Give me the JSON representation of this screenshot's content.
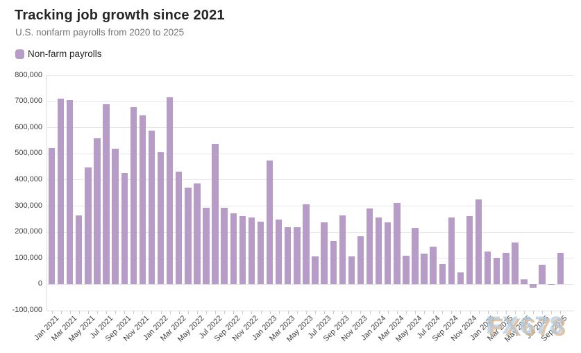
{
  "header": {
    "title": "Tracking job growth since 2021",
    "subtitle": "U.S. nonfarm payrolls from 2020 to 2025"
  },
  "legend": {
    "label": "Non-farm payrolls"
  },
  "watermark": {
    "text": "FX678"
  },
  "colors": {
    "bar": "#b69cc6",
    "grid": "#e7e7e7",
    "axis": "#dcdcdc",
    "tick": "#c9c9c9",
    "title": "#262626",
    "subtitle": "#757575",
    "axis_label": "#3f3f3f"
  },
  "chart_data": {
    "type": "bar",
    "title": "Tracking job growth since 2021",
    "subtitle": "U.S. nonfarm payrolls from 2020 to 2025",
    "series_name": "Non-farm payrolls",
    "bar_color": "#b69cc6",
    "grid": true,
    "legend_position": "top-left",
    "ylim": [
      -100000,
      800000
    ],
    "y_tick_step": 100000,
    "y_tick_labels": [
      "800,000",
      "700,000",
      "600,000",
      "500,000",
      "400,000",
      "300,000",
      "200,000",
      "100,000",
      "0",
      "-100,000"
    ],
    "x_label_interval": 2,
    "categories": [
      "Jan 2021",
      "Feb 2021",
      "Mar 2021",
      "Apr 2021",
      "May 2021",
      "Jun 2021",
      "Jul 2021",
      "Aug 2021",
      "Sep 2021",
      "Oct 2021",
      "Nov 2021",
      "Dec 2021",
      "Jan 2022",
      "Feb 2022",
      "Mar 2022",
      "Apr 2022",
      "May 2022",
      "Jun 2022",
      "Jul 2022",
      "Aug 2022",
      "Sep 2022",
      "Oct 2022",
      "Nov 2022",
      "Dec 2022",
      "Jan 2023",
      "Feb 2023",
      "Mar 2023",
      "Apr 2023",
      "May 2023",
      "Jun 2023",
      "Jul 2023",
      "Aug 2023",
      "Sep 2023",
      "Oct 2023",
      "Nov 2023",
      "Dec 2023",
      "Jan 2024",
      "Feb 2024",
      "Mar 2024",
      "Apr 2024",
      "May 2024",
      "Jun 2024",
      "Jul 2024",
      "Aug 2024",
      "Sep 2024",
      "Oct 2024",
      "Nov 2024",
      "Dec 2024",
      "Jan 2025",
      "Feb 2025",
      "Mar 2025",
      "Apr 2025",
      "May 2025",
      "Jun 2025",
      "Jul 2025",
      "Aug 2025",
      "Sep 2025"
    ],
    "values": [
      520000,
      710000,
      704000,
      263000,
      447000,
      557000,
      689000,
      517000,
      424000,
      677000,
      647000,
      588000,
      504000,
      714000,
      430000,
      370000,
      385000,
      293000,
      537000,
      292000,
      270000,
      261000,
      256000,
      239000,
      472000,
      248000,
      217000,
      217000,
      306000,
      105000,
      236000,
      165000,
      262000,
      105000,
      182000,
      290000,
      256000,
      236000,
      310000,
      108000,
      216000,
      118000,
      144000,
      78000,
      255000,
      44000,
      261000,
      323000,
      125000,
      102000,
      120000,
      158000,
      19000,
      -13000,
      73000,
      -4000,
      119000
    ]
  }
}
